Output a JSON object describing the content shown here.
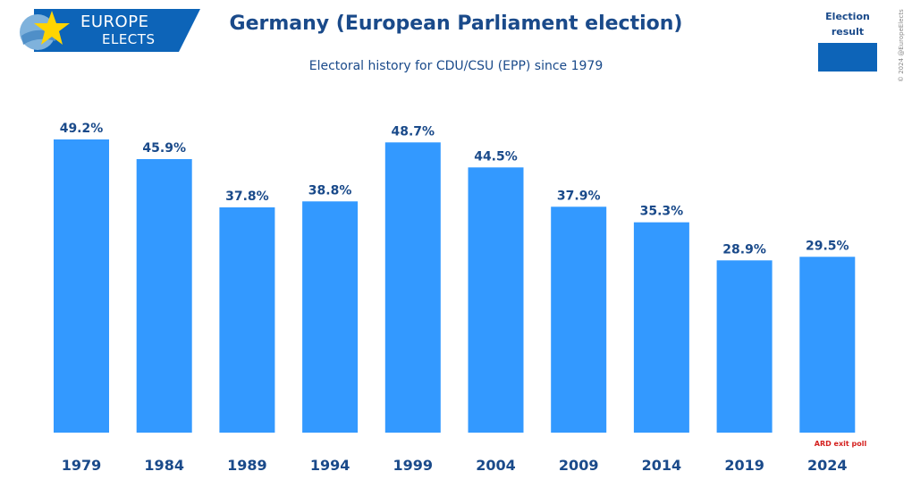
{
  "header": {
    "logo_line1": "EUROPE",
    "logo_line2": "ELECTS",
    "title": "Germany (European Parliament election)",
    "subtitle": "Electoral history for CDU/CSU (EPP) since 1979",
    "copyright": "© 2024 @EuropeElects"
  },
  "legend": {
    "label_line1": "Election",
    "label_line2": "result",
    "color": "#0d64b8"
  },
  "note": "ARD exit poll",
  "colors": {
    "bar": "#3399ff",
    "text": "#1a4a8a",
    "note": "#d4201e"
  },
  "chart_data": {
    "type": "bar",
    "title": "Germany (European Parliament election)",
    "subtitle": "Electoral history for CDU/CSU (EPP) since 1979",
    "categories": [
      "1979",
      "1984",
      "1989",
      "1994",
      "1999",
      "2004",
      "2009",
      "2014",
      "2019",
      "2024"
    ],
    "values": [
      49.2,
      45.9,
      37.8,
      38.8,
      48.7,
      44.5,
      37.9,
      35.3,
      28.9,
      29.5
    ],
    "labels": [
      "49.2%",
      "45.9%",
      "37.8%",
      "38.8%",
      "48.7%",
      "44.5%",
      "37.9%",
      "35.3%",
      "28.9%",
      "29.5%"
    ],
    "unit": "%",
    "xlabel": "",
    "ylabel": "",
    "ylim": [
      0,
      49.2
    ],
    "grid": false,
    "legend_position": "top-right"
  }
}
